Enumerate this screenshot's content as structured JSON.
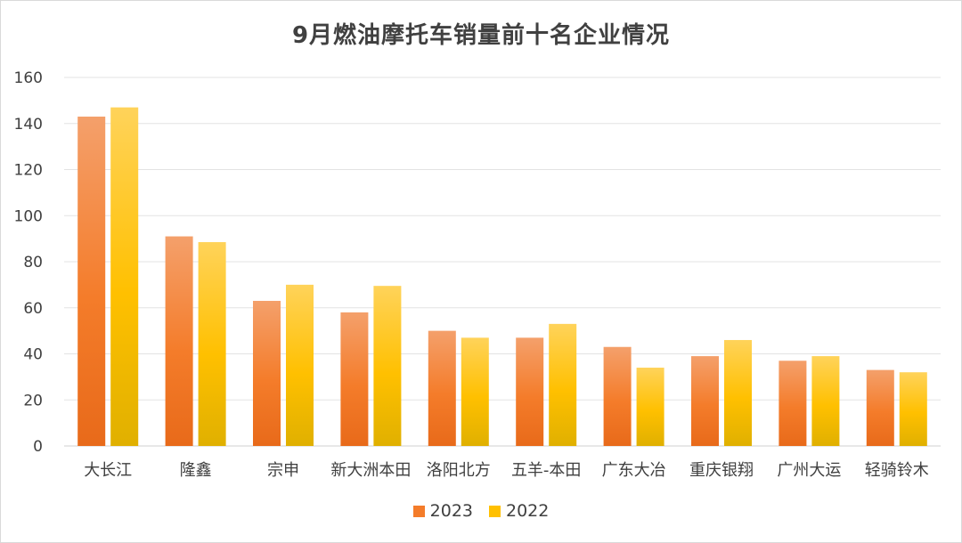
{
  "chart_data": {
    "type": "bar",
    "title": "9月燃油摩托车销量前十名企业情况",
    "xlabel": "",
    "ylabel": "",
    "ylim": [
      0,
      160
    ],
    "yticks": [
      0,
      20,
      40,
      60,
      80,
      100,
      120,
      140,
      160
    ],
    "grid": true,
    "legend_position": "bottom",
    "categories": [
      "大长江",
      "隆鑫",
      "宗申",
      "新大洲本田",
      "洛阳北方",
      "五羊-本田",
      "广东大冶",
      "重庆银翔",
      "广州大运",
      "轻骑铃木"
    ],
    "series": [
      {
        "name": "2023",
        "values": [
          143,
          91,
          63,
          58,
          50,
          47,
          43,
          39,
          37,
          33
        ],
        "color_top": "#F4A06B",
        "color_mid": "#F47C2A",
        "color_bottom": "#E86A1A"
      },
      {
        "name": "2022",
        "values": [
          147,
          88.5,
          70,
          69.5,
          47,
          53,
          34,
          46,
          39,
          32
        ],
        "color_top": "#FFD35A",
        "color_mid": "#FFC000",
        "color_bottom": "#E0B000"
      }
    ]
  }
}
